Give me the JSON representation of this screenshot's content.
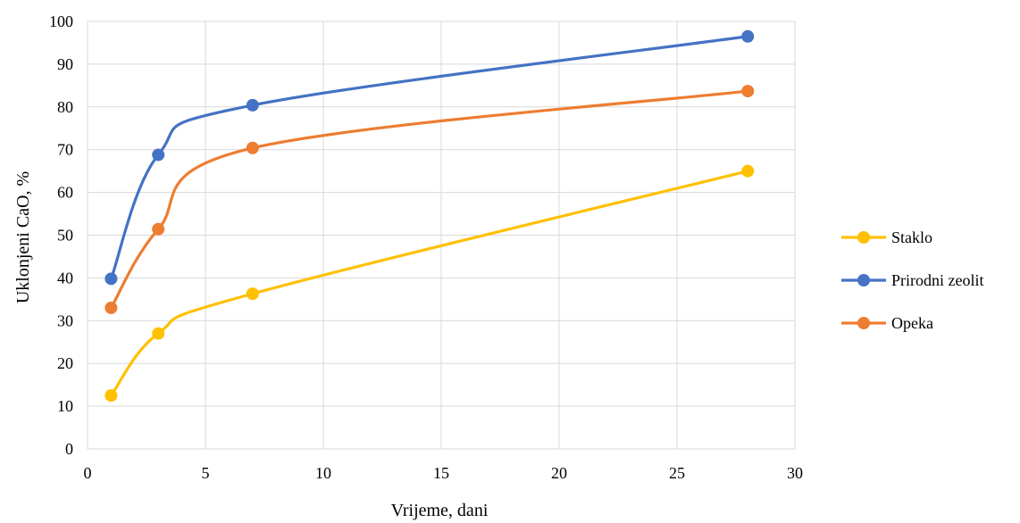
{
  "chart_data": {
    "type": "line",
    "title": "",
    "xlabel": "Vrijeme, dani",
    "ylabel": "Uklonjeni CaO, %",
    "xlim": [
      0,
      30
    ],
    "ylim": [
      0,
      100
    ],
    "xticks": [
      "0",
      "5",
      "10",
      "15",
      "20",
      "25",
      "30"
    ],
    "yticks": [
      "0",
      "10",
      "20",
      "30",
      "40",
      "50",
      "60",
      "70",
      "80",
      "90",
      "100"
    ],
    "grid": true,
    "smooth": true,
    "legend_position": "right",
    "series": [
      {
        "name": "Staklo",
        "color": "#ffc000",
        "x": [
          1,
          3,
          7,
          28
        ],
        "y": [
          12.5,
          27,
          36.3,
          65
        ]
      },
      {
        "name": "Prirodni zeolit",
        "color": "#4472c4",
        "x": [
          1,
          3,
          7,
          28
        ],
        "y": [
          39.8,
          68.8,
          80.4,
          96.5
        ]
      },
      {
        "name": "Opeka",
        "color": "#ed7d31",
        "x": [
          1,
          3,
          7,
          28
        ],
        "y": [
          33,
          51.4,
          70.4,
          83.7
        ]
      }
    ]
  }
}
